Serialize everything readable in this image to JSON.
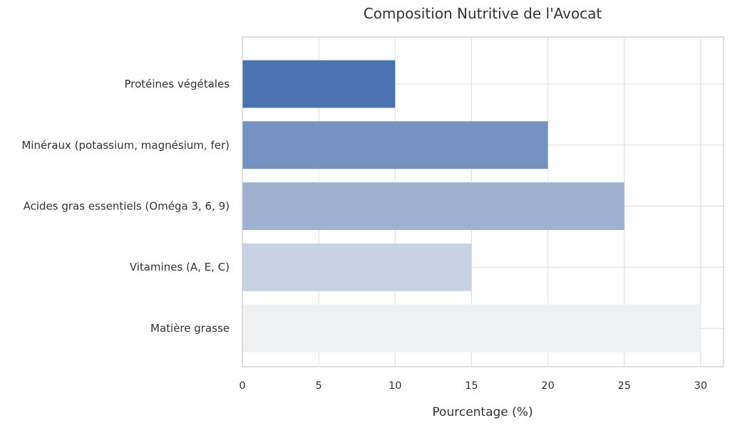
{
  "chart_data": {
    "type": "bar",
    "orientation": "horizontal",
    "title": "Composition Nutritive de l'Avocat",
    "xlabel": "Pourcentage (%)",
    "ylabel": "",
    "categories": [
      "Matière grasse",
      "Vitamines (A, E, C)",
      "Acides gras essentiels (Oméga 3, 6, 9)",
      "Minéraux (potassium, magnésium, fer)",
      "Protéines végétales"
    ],
    "values": [
      30,
      15,
      25,
      20,
      10
    ],
    "colors": [
      "#eef0f2",
      "#c8d2e2",
      "#9eb1d0",
      "#7692c0",
      "#4c72b0"
    ],
    "xlim": [
      0,
      31.5
    ],
    "xticks": [
      0,
      5,
      10,
      15,
      20,
      25,
      30
    ],
    "grid": true,
    "legend": "none"
  }
}
